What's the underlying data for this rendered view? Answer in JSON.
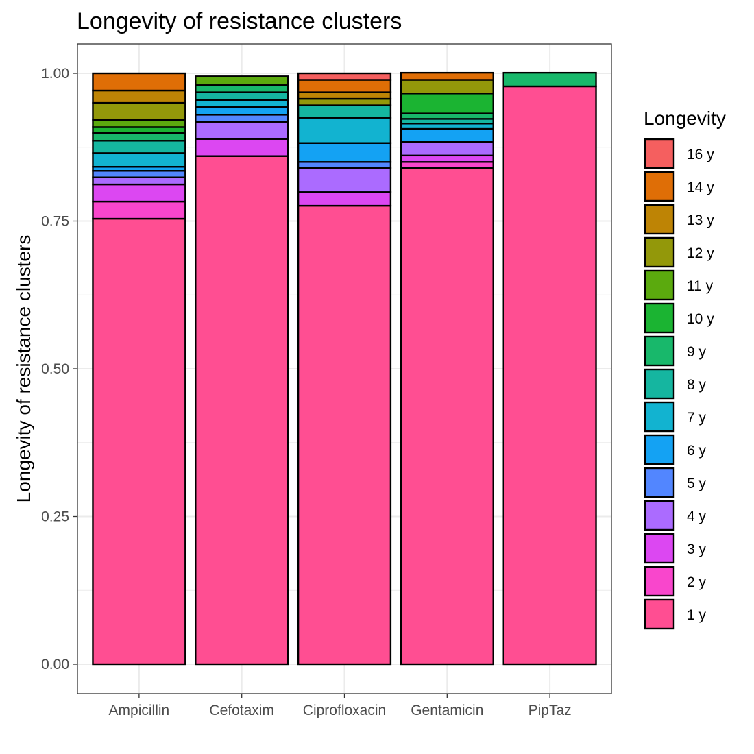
{
  "chart_data": {
    "type": "bar",
    "stacked": true,
    "title": "Longevity of resistance clusters",
    "xlabel": "",
    "ylabel": "Longevity of resistance clusters",
    "ylim": [
      0,
      1
    ],
    "y_ticks": [
      "0.00",
      "0.25",
      "0.50",
      "0.75",
      "1.00"
    ],
    "grid": true,
    "legend_position": "right",
    "legend_title": "Longevity",
    "categories": [
      "Ampicillin",
      "Cefotaxim",
      "Ciprofloxacin",
      "Gentamicin",
      "PipTaz"
    ],
    "series": [
      {
        "name": "1 y",
        "color": "#FF4E92",
        "values": [
          0.754,
          0.86,
          0.776,
          0.84,
          0.978
        ]
      },
      {
        "name": "2 y",
        "color": "#F946CC",
        "values": [
          0.029,
          0.0,
          0.0,
          0.01,
          0.0
        ]
      },
      {
        "name": "3 y",
        "color": "#DC47F2",
        "values": [
          0.029,
          0.029,
          0.023,
          0.011,
          0.0
        ]
      },
      {
        "name": "4 y",
        "color": "#AB6BFF",
        "values": [
          0.012,
          0.029,
          0.041,
          0.023,
          0.0
        ]
      },
      {
        "name": "5 y",
        "color": "#5286FF",
        "values": [
          0.011,
          0.012,
          0.01,
          0.0,
          0.0
        ]
      },
      {
        "name": "6 y",
        "color": "#14A2F3",
        "values": [
          0.007,
          0.013,
          0.032,
          0.022,
          0.0
        ]
      },
      {
        "name": "7 y",
        "color": "#12B3D0",
        "values": [
          0.023,
          0.012,
          0.043,
          0.009,
          0.0
        ]
      },
      {
        "name": "8 y",
        "color": "#15B6A0",
        "values": [
          0.021,
          0.013,
          0.021,
          0.008,
          0.0
        ]
      },
      {
        "name": "9 y",
        "color": "#18B86B",
        "values": [
          0.013,
          0.012,
          0.0,
          0.009,
          0.023
        ]
      },
      {
        "name": "10 y",
        "color": "#1BB432",
        "values": [
          0.01,
          0.0,
          0.0,
          0.034,
          0.0
        ]
      },
      {
        "name": "11 y",
        "color": "#5BAA0E",
        "values": [
          0.012,
          0.015,
          0.0,
          0.0,
          0.0
        ]
      },
      {
        "name": "12 y",
        "color": "#93980A",
        "values": [
          0.029,
          0.0,
          0.011,
          0.023,
          0.0
        ]
      },
      {
        "name": "13 y",
        "color": "#BE8405",
        "values": [
          0.021,
          0.0,
          0.011,
          0.0,
          0.0
        ]
      },
      {
        "name": "14 y",
        "color": "#DF6E06",
        "values": [
          0.029,
          0.0,
          0.021,
          0.012,
          0.0
        ]
      },
      {
        "name": "16 y",
        "color": "#F55F5F",
        "values": [
          0.0,
          0.0,
          0.011,
          0.0,
          0.0
        ]
      }
    ]
  }
}
